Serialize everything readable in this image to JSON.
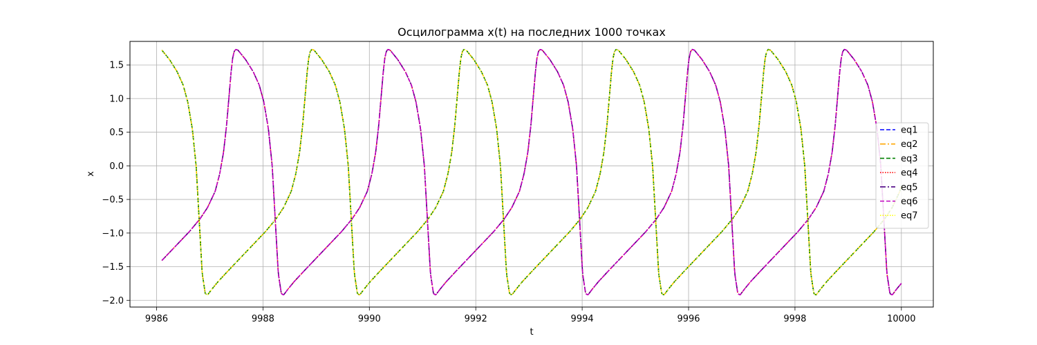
{
  "chart_data": {
    "type": "line",
    "title": "Осцилограмма x(t) на последних 1000 точках",
    "xlabel": "t",
    "ylabel": "x",
    "xlim": [
      9985.5,
      10000.6
    ],
    "ylim": [
      -2.1,
      1.85
    ],
    "xticks": [
      9986,
      9988,
      9990,
      9992,
      9994,
      9996,
      9998,
      10000
    ],
    "xtick_labels": [
      "9986",
      "9988",
      "9990",
      "9992",
      "9994",
      "9996",
      "9998",
      "10000"
    ],
    "yticks": [
      -2.0,
      -1.5,
      -1.0,
      -0.5,
      0.0,
      0.5,
      1.0,
      1.5
    ],
    "ytick_labels": [
      "−2.0",
      "−1.5",
      "−1.0",
      "−0.5",
      "0.0",
      "0.5",
      "1.0",
      "1.5"
    ],
    "grid": true,
    "legend_position": "right",
    "period": 2.86,
    "group_a_start_phase": 0.0,
    "group_b_start_phase": 0.5,
    "t_start": 9986.1,
    "t_end": 10000.0,
    "waveform": {
      "phase": [
        0.0,
        0.05,
        0.1,
        0.14,
        0.17,
        0.2,
        0.225,
        0.245,
        0.265,
        0.285,
        0.3,
        0.33,
        0.37,
        0.44,
        0.52,
        0.6,
        0.68,
        0.75,
        0.8,
        0.85,
        0.88,
        0.905,
        0.925,
        0.94,
        0.955,
        0.965,
        0.975,
        0.985,
        1.0
      ],
      "x": [
        1.72,
        1.58,
        1.4,
        1.2,
        0.95,
        0.55,
        0.0,
        -0.8,
        -1.6,
        -1.9,
        -1.92,
        -1.83,
        -1.72,
        -1.55,
        -1.36,
        -1.17,
        -0.98,
        -0.79,
        -0.62,
        -0.38,
        -0.12,
        0.2,
        0.6,
        1.0,
        1.4,
        1.6,
        1.7,
        1.73,
        1.72
      ]
    },
    "series": [
      {
        "name": "eq1",
        "group": "a",
        "color": "#0000ff",
        "dash": "6,3"
      },
      {
        "name": "eq2",
        "group": "a",
        "color": "#ffa500",
        "dash": "8,3,2,3"
      },
      {
        "name": "eq3",
        "group": "a",
        "color": "#008000",
        "dash": "6,3"
      },
      {
        "name": "eq4",
        "group": "b",
        "color": "#ff0000",
        "dash": "1.5,2"
      },
      {
        "name": "eq5",
        "group": "b",
        "color": "#4b0082",
        "dash": "8,3,2,3"
      },
      {
        "name": "eq6",
        "group": "b",
        "color": "#c000c0",
        "dash": "6,3"
      },
      {
        "name": "eq7",
        "group": "a",
        "color": "#ffff00",
        "dash": "1.5,2"
      }
    ]
  }
}
